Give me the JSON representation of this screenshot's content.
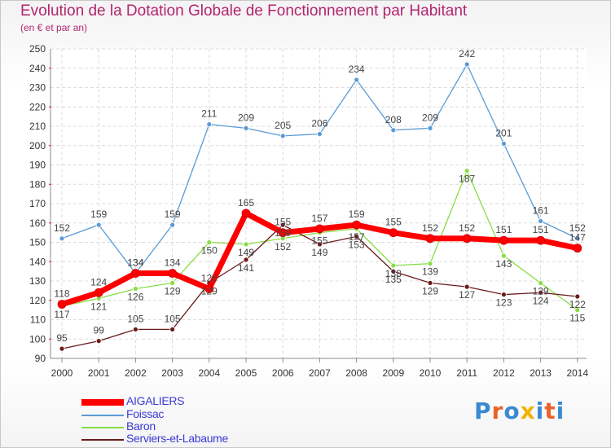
{
  "title": "Evolution de la Dotation Globale de Fonctionnement par Habitant",
  "subtitle": "(en € et par an)",
  "logo": {
    "letters": [
      "P",
      "r",
      "o",
      "x",
      "i",
      "t",
      "i"
    ],
    "colors": [
      "#3b8ad1",
      "#e8642a",
      "#3b8ad1",
      "#f0b400",
      "#3b8ad1",
      "#e8642a",
      "#3b8ad1"
    ]
  },
  "chart_data": {
    "type": "line",
    "title": "Evolution de la Dotation Globale de Fonctionnement par Habitant",
    "subtitle": "(en € et par an)",
    "xlabel": "",
    "ylabel": "",
    "categories": [
      "2000",
      "2001",
      "2002",
      "2003",
      "2004",
      "2005",
      "2006",
      "2007",
      "2008",
      "2009",
      "2010",
      "2011",
      "2012",
      "2013",
      "2014"
    ],
    "ylim": [
      90,
      250
    ],
    "yticks": [
      90,
      100,
      110,
      120,
      130,
      140,
      150,
      160,
      170,
      180,
      190,
      200,
      210,
      220,
      230,
      240,
      250
    ],
    "grid": true,
    "legend": "bottom-left",
    "series": [
      {
        "name": "AIGALIERS",
        "color": "#ff0000",
        "values": [
          118,
          124,
          134,
          134,
          126,
          165,
          155,
          157,
          159,
          155,
          152,
          152,
          151,
          151,
          147
        ]
      },
      {
        "name": "Foissac",
        "color": "#5a9bd5",
        "values": [
          152,
          159,
          134,
          159,
          211,
          209,
          205,
          206,
          234,
          208,
          209,
          242,
          201,
          161,
          152
        ]
      },
      {
        "name": "Baron",
        "color": "#88dd44",
        "values": [
          117,
          121,
          126,
          129,
          150,
          149,
          152,
          155,
          157,
          138,
          139,
          187,
          143,
          129,
          115
        ]
      },
      {
        "name": "Serviers-et-Labaume",
        "color": "#6b1a1a",
        "values": [
          95,
          99,
          105,
          105,
          129,
          141,
          159,
          149,
          153,
          135,
          129,
          127,
          123,
          124,
          122
        ]
      }
    ]
  }
}
